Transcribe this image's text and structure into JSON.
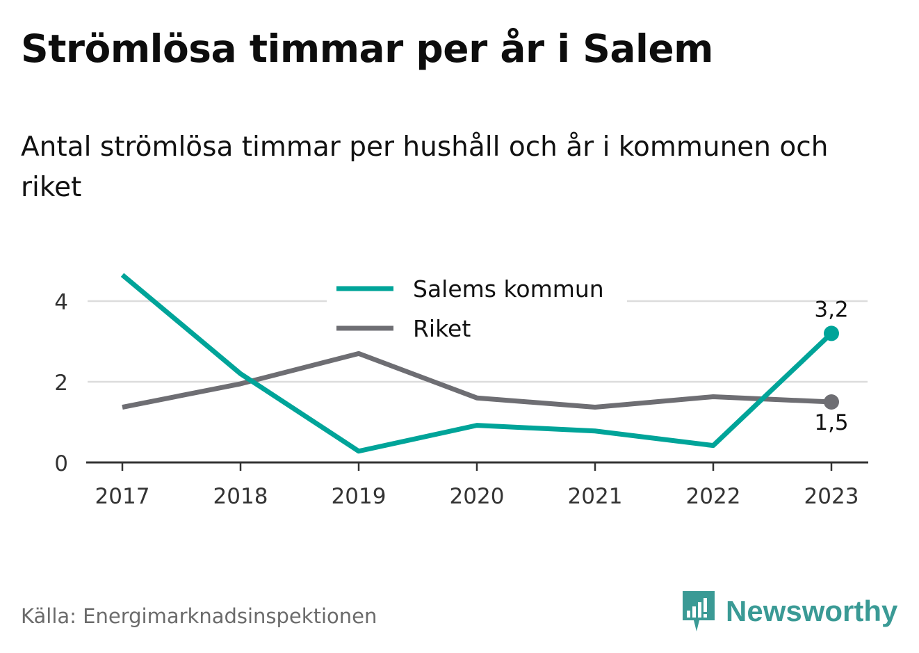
{
  "title": "Strömlösa timmar per år i Salem",
  "subtitle": "Antal strömlösa timmar per hushåll och år i kommunen och riket",
  "source": "Källa: Energimarknadsinspektionen",
  "brand": {
    "name": "Newsworthy",
    "icon": "newsworthy-logo-icon",
    "color": "#3a9a95"
  },
  "chart_data": {
    "type": "line",
    "categories": [
      "2017",
      "2018",
      "2019",
      "2020",
      "2021",
      "2022",
      "2023"
    ],
    "series": [
      {
        "name": "Salems kommun",
        "color": "#00a499",
        "values": [
          4.65,
          2.2,
          0.28,
          0.92,
          0.78,
          0.42,
          3.2
        ],
        "end_label": "3,2"
      },
      {
        "name": "Riket",
        "color": "#6e6e73",
        "values": [
          1.37,
          1.95,
          2.7,
          1.6,
          1.37,
          1.63,
          1.5
        ],
        "end_label": "1,5"
      }
    ],
    "yticks": [
      0,
      2,
      4
    ],
    "ylim": [
      0,
      4.65
    ],
    "grid": true,
    "legend": "top-center"
  }
}
